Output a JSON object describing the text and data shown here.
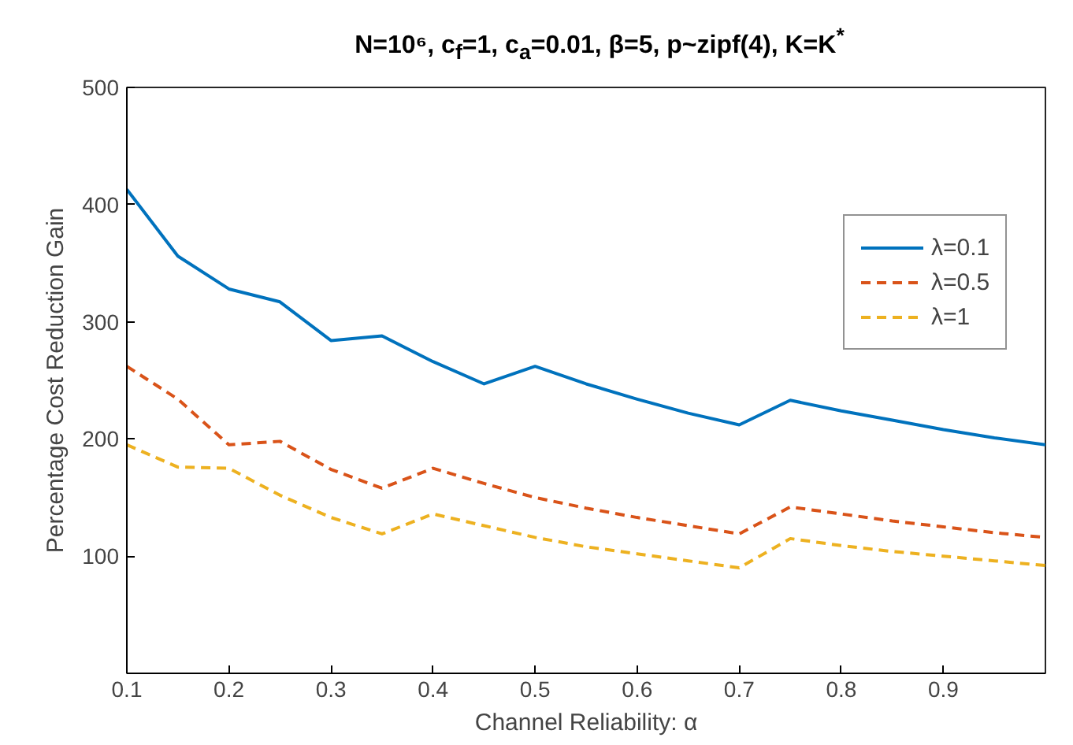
{
  "chart_data": {
    "type": "line",
    "title": "N=10⁶, c$_{f}$=1, c$_{a}$=0.01, β=5, p~zipf(4), K=K$^{*}$",
    "xlabel": "Channel Reliability: α",
    "ylabel": "Percentage Cost Reduction Gain",
    "x": [
      0.1,
      0.15,
      0.2,
      0.25,
      0.3,
      0.35,
      0.4,
      0.45,
      0.5,
      0.55,
      0.6,
      0.65,
      0.7,
      0.75,
      0.8,
      0.85,
      0.9,
      0.95,
      1.0
    ],
    "series": [
      {
        "name": "λ=0.1",
        "color": "#0072bd",
        "line_style": "solid",
        "values": [
          413,
          356,
          328,
          317,
          284,
          288,
          266,
          247,
          262,
          247,
          234,
          222,
          212,
          233,
          224,
          216,
          208,
          201,
          195
        ]
      },
      {
        "name": "λ=0.5",
        "color": "#d95319",
        "line_style": "dashed",
        "values": [
          262,
          234,
          195,
          198,
          174,
          158,
          175,
          162,
          150,
          141,
          133,
          126,
          119,
          142,
          136,
          130,
          125,
          120,
          116
        ]
      },
      {
        "name": "λ=1",
        "color": "#edb120",
        "line_style": "dashed",
        "values": [
          195,
          176,
          175,
          152,
          133,
          119,
          136,
          126,
          116,
          108,
          102,
          96,
          90,
          115,
          109,
          104,
          100,
          96,
          92
        ]
      }
    ],
    "xlim": [
      0.1,
      1.0
    ],
    "xticks": [
      0.1,
      0.2,
      0.3,
      0.4,
      0.5,
      0.6,
      0.7,
      0.8,
      0.9
    ],
    "ylim": [
      0,
      500
    ],
    "yticks": [
      100,
      200,
      300,
      400,
      500
    ],
    "grid": false,
    "legend": "right",
    "marker": "none"
  }
}
